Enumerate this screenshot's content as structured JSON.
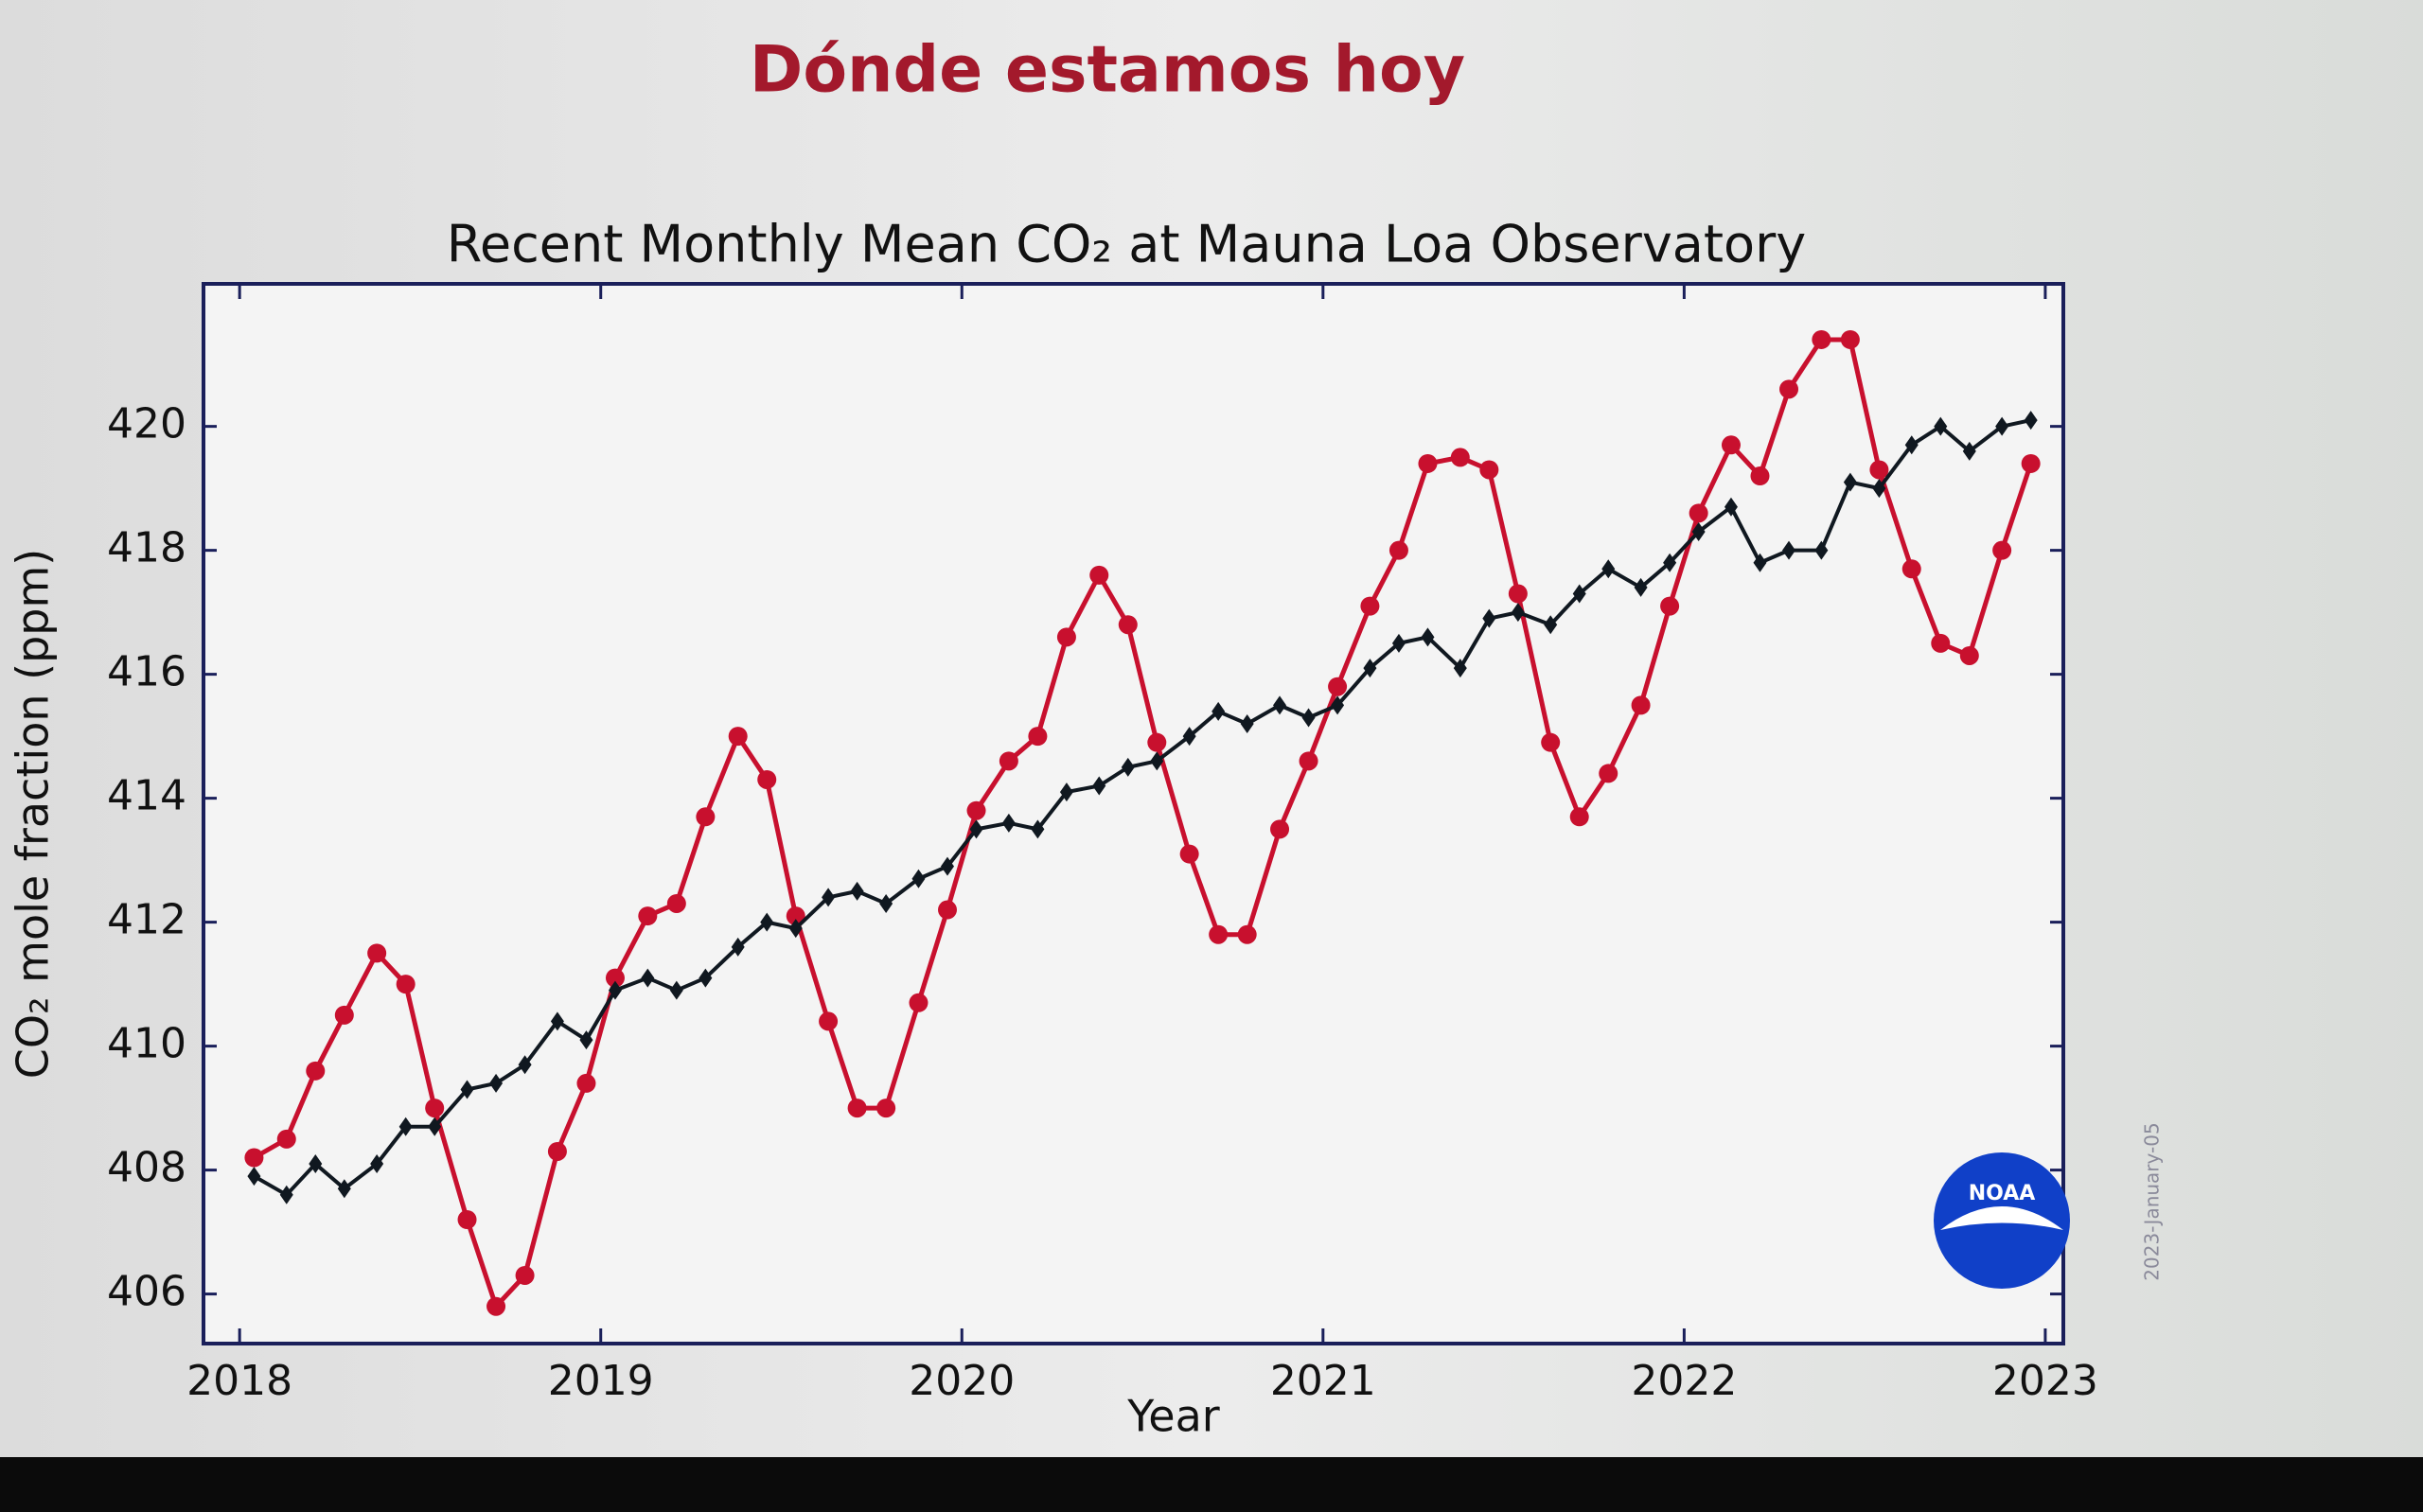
{
  "slide_title": "Dónde estamos hoy",
  "chart_data": {
    "type": "line",
    "title": "Recent Monthly Mean CO₂ at Mauna Loa Observatory",
    "x_label": "Year",
    "y_label": "CO₂ mole fraction (ppm)",
    "annotations": [
      "2023-January-05",
      "NOAA"
    ],
    "x": [
      2018.04,
      2018.13,
      2018.21,
      2018.29,
      2018.38,
      2018.46,
      2018.54,
      2018.63,
      2018.71,
      2018.79,
      2018.88,
      2018.96,
      2019.04,
      2019.13,
      2019.21,
      2019.29,
      2019.38,
      2019.46,
      2019.54,
      2019.63,
      2019.71,
      2019.79,
      2019.88,
      2019.96,
      2020.04,
      2020.13,
      2020.21,
      2020.29,
      2020.38,
      2020.46,
      2020.54,
      2020.63,
      2020.71,
      2020.79,
      2020.88,
      2020.96,
      2021.04,
      2021.13,
      2021.21,
      2021.29,
      2021.38,
      2021.46,
      2021.54,
      2021.63,
      2021.71,
      2021.79,
      2021.88,
      2021.96,
      2022.04,
      2022.13,
      2022.21,
      2022.29,
      2022.38,
      2022.46,
      2022.54,
      2022.63,
      2022.71,
      2022.79,
      2022.88,
      2022.96
    ],
    "series": [
      {
        "color": "#c8102e",
        "marker": "circle",
        "values": [
          408.2,
          408.5,
          409.6,
          410.5,
          411.5,
          411.0,
          409.0,
          407.2,
          405.8,
          406.3,
          408.3,
          409.4,
          411.1,
          412.1,
          412.3,
          413.7,
          415.0,
          414.3,
          412.1,
          410.4,
          409.0,
          409.0,
          410.7,
          412.2,
          413.8,
          414.6,
          415.0,
          416.6,
          417.6,
          416.8,
          414.9,
          413.1,
          411.8,
          411.8,
          413.5,
          414.6,
          415.8,
          417.1,
          418.0,
          419.4,
          419.5,
          419.3,
          417.3,
          414.9,
          413.7,
          414.4,
          415.5,
          417.1,
          418.6,
          419.7,
          419.2,
          420.6,
          421.4,
          421.4,
          419.3,
          417.7,
          416.5,
          416.3,
          418.0,
          419.4
        ]
      },
      {
        "color": "#101820",
        "marker": "diamond",
        "values": [
          407.9,
          407.6,
          408.1,
          407.7,
          408.1,
          408.7,
          408.7,
          409.3,
          409.4,
          409.7,
          410.4,
          410.1,
          410.9,
          411.1,
          410.9,
          411.1,
          411.6,
          412.0,
          411.9,
          412.4,
          412.5,
          412.3,
          412.7,
          412.9,
          413.5,
          413.6,
          413.5,
          414.1,
          414.2,
          414.5,
          414.6,
          415.0,
          415.4,
          415.2,
          415.5,
          415.3,
          415.5,
          416.1,
          416.5,
          416.6,
          416.1,
          416.9,
          417.0,
          416.8,
          417.3,
          417.7,
          417.4,
          417.8,
          418.3,
          418.7,
          417.8,
          418.0,
          418.0,
          419.1,
          419.0,
          419.7,
          420.0,
          419.6,
          420.0,
          420.1
        ]
      }
    ],
    "xlim": [
      2017.9,
      2023.05
    ],
    "xticks": [
      2018,
      2019,
      2020,
      2021,
      2022,
      2023
    ],
    "ylim": [
      405.2,
      422.3
    ],
    "yticks": [
      406,
      408,
      410,
      412,
      414,
      416,
      418,
      420
    ],
    "grid": false
  }
}
